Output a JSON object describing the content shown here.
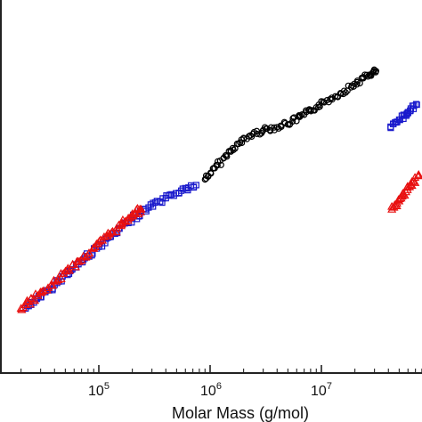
{
  "chart_data": {
    "type": "scatter",
    "x_scale": "log",
    "xlabel": "Molar Mass (g/mol)",
    "ylabel": "",
    "title": "",
    "xlim": [
      15000,
      80000000
    ],
    "ylim": [
      0,
      1
    ],
    "grid": false,
    "x_tick_labels": [
      {
        "base": "10",
        "exp": "5",
        "value": 100000
      },
      {
        "base": "10",
        "exp": "6",
        "value": 1000000
      },
      {
        "base": "10",
        "exp": "7",
        "value": 10000000
      }
    ],
    "series": [
      {
        "color": "#000000",
        "marker": "circle",
        "points": [
          [
            900000,
            0.52
          ],
          [
            1100000,
            0.55
          ],
          [
            1400000,
            0.585
          ],
          [
            1800000,
            0.615
          ],
          [
            2300000,
            0.638
          ],
          [
            3000000,
            0.652
          ],
          [
            4000000,
            0.66
          ],
          [
            5500000,
            0.675
          ],
          [
            7000000,
            0.693
          ],
          [
            9000000,
            0.713
          ],
          [
            12000000,
            0.735
          ],
          [
            16000000,
            0.757
          ],
          [
            21000000,
            0.78
          ],
          [
            27000000,
            0.8
          ],
          [
            31000000,
            0.81
          ]
        ]
      },
      {
        "color": "#1a1acc",
        "marker": "square",
        "points": [
          [
            22000,
            0.175
          ],
          [
            30000,
            0.205
          ],
          [
            40000,
            0.238
          ],
          [
            55000,
            0.275
          ],
          [
            75000,
            0.31
          ],
          [
            100000,
            0.34
          ],
          [
            140000,
            0.375
          ],
          [
            200000,
            0.415
          ],
          [
            280000,
            0.445
          ],
          [
            400000,
            0.47
          ],
          [
            550000,
            0.49
          ],
          [
            750000,
            0.505
          ],
          [
            42000000,
            0.658
          ],
          [
            50000000,
            0.68
          ],
          [
            60000000,
            0.7
          ],
          [
            72000000,
            0.72
          ]
        ]
      },
      {
        "color": "#e81010",
        "marker": "triangle",
        "points": [
          [
            20000,
            0.175
          ],
          [
            26000,
            0.2
          ],
          [
            35000,
            0.23
          ],
          [
            48000,
            0.268
          ],
          [
            65000,
            0.3
          ],
          [
            90000,
            0.335
          ],
          [
            120000,
            0.368
          ],
          [
            160000,
            0.4
          ],
          [
            200000,
            0.428
          ],
          [
            240000,
            0.44
          ],
          [
            43000000,
            0.44
          ],
          [
            52000000,
            0.47
          ],
          [
            62000000,
            0.5
          ],
          [
            75000000,
            0.53
          ]
        ]
      }
    ]
  }
}
